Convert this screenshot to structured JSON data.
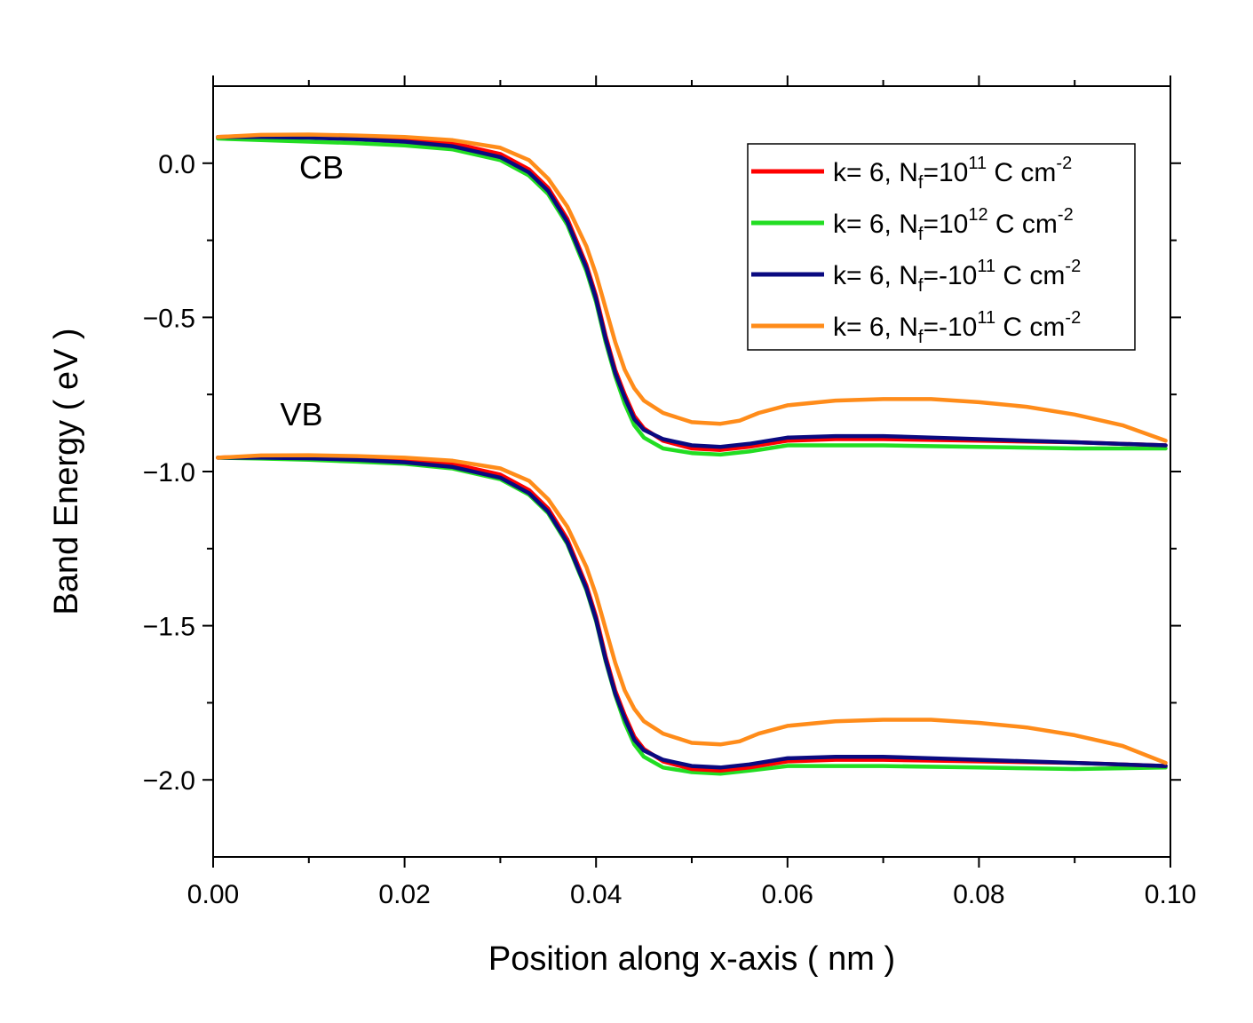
{
  "chart_data": {
    "type": "line",
    "xlabel": "Position along x-axis ( nm )",
    "ylabel": "Band Energy ( eV )",
    "xlim": [
      0.0,
      0.1
    ],
    "ylim": [
      -2.25,
      0.25
    ],
    "x_ticks": [
      "0.00",
      "0.02",
      "0.04",
      "0.06",
      "0.08",
      "0.10"
    ],
    "y_ticks": [
      "0.0",
      "−0.5",
      "−1.0",
      "−1.5",
      "−2.0"
    ],
    "grid": false,
    "legend_position": "top-right",
    "annotations": [
      {
        "text": "CB",
        "x": 0.009,
        "y": -0.05
      },
      {
        "text": "VB",
        "x": 0.007,
        "y": -0.85
      }
    ],
    "series": [
      {
        "legend": {
          "prefix": "k= 6, N",
          "sub": "f",
          "mid": "=10",
          "sup": "11",
          "unit": " C cm",
          "unit_sup": "-2"
        },
        "color": "#ff0000",
        "cb": [
          [
            0.0005,
            0.085
          ],
          [
            0.005,
            0.09
          ],
          [
            0.01,
            0.09
          ],
          [
            0.015,
            0.085
          ],
          [
            0.02,
            0.078
          ],
          [
            0.025,
            0.065
          ],
          [
            0.03,
            0.03
          ],
          [
            0.033,
            -0.02
          ],
          [
            0.035,
            -0.08
          ],
          [
            0.037,
            -0.18
          ],
          [
            0.039,
            -0.33
          ],
          [
            0.04,
            -0.43
          ],
          [
            0.041,
            -0.56
          ],
          [
            0.042,
            -0.67
          ],
          [
            0.043,
            -0.75
          ],
          [
            0.044,
            -0.82
          ],
          [
            0.045,
            -0.86
          ],
          [
            0.047,
            -0.9
          ],
          [
            0.05,
            -0.925
          ],
          [
            0.053,
            -0.93
          ],
          [
            0.056,
            -0.92
          ],
          [
            0.06,
            -0.9
          ],
          [
            0.065,
            -0.895
          ],
          [
            0.07,
            -0.895
          ],
          [
            0.08,
            -0.9
          ],
          [
            0.09,
            -0.905
          ],
          [
            0.0995,
            -0.915
          ]
        ],
        "vb": [
          [
            0.0005,
            -0.955
          ],
          [
            0.005,
            -0.95
          ],
          [
            0.01,
            -0.95
          ],
          [
            0.015,
            -0.955
          ],
          [
            0.02,
            -0.962
          ],
          [
            0.025,
            -0.975
          ],
          [
            0.03,
            -1.01
          ],
          [
            0.033,
            -1.06
          ],
          [
            0.035,
            -1.12
          ],
          [
            0.037,
            -1.22
          ],
          [
            0.039,
            -1.37
          ],
          [
            0.04,
            -1.47
          ],
          [
            0.041,
            -1.6
          ],
          [
            0.042,
            -1.71
          ],
          [
            0.043,
            -1.79
          ],
          [
            0.044,
            -1.86
          ],
          [
            0.045,
            -1.9
          ],
          [
            0.047,
            -1.94
          ],
          [
            0.05,
            -1.965
          ],
          [
            0.053,
            -1.97
          ],
          [
            0.056,
            -1.96
          ],
          [
            0.06,
            -1.94
          ],
          [
            0.065,
            -1.935
          ],
          [
            0.07,
            -1.935
          ],
          [
            0.08,
            -1.94
          ],
          [
            0.09,
            -1.945
          ],
          [
            0.0995,
            -1.955
          ]
        ]
      },
      {
        "legend": {
          "prefix": "k= 6, N",
          "sub": "f",
          "mid": "=10",
          "sup": "12",
          "unit": " C cm",
          "unit_sup": "-2"
        },
        "color": "#22dd22",
        "cb": [
          [
            0.0005,
            0.08
          ],
          [
            0.005,
            0.075
          ],
          [
            0.01,
            0.07
          ],
          [
            0.015,
            0.065
          ],
          [
            0.02,
            0.058
          ],
          [
            0.025,
            0.045
          ],
          [
            0.03,
            0.01
          ],
          [
            0.033,
            -0.04
          ],
          [
            0.035,
            -0.1
          ],
          [
            0.037,
            -0.2
          ],
          [
            0.039,
            -0.35
          ],
          [
            0.04,
            -0.45
          ],
          [
            0.041,
            -0.58
          ],
          [
            0.042,
            -0.69
          ],
          [
            0.043,
            -0.78
          ],
          [
            0.044,
            -0.85
          ],
          [
            0.045,
            -0.89
          ],
          [
            0.047,
            -0.925
          ],
          [
            0.05,
            -0.94
          ],
          [
            0.053,
            -0.945
          ],
          [
            0.056,
            -0.935
          ],
          [
            0.06,
            -0.915
          ],
          [
            0.065,
            -0.915
          ],
          [
            0.07,
            -0.915
          ],
          [
            0.08,
            -0.92
          ],
          [
            0.09,
            -0.925
          ],
          [
            0.0995,
            -0.925
          ]
        ],
        "vb": [
          [
            0.0005,
            -0.955
          ],
          [
            0.005,
            -0.958
          ],
          [
            0.01,
            -0.962
          ],
          [
            0.015,
            -0.968
          ],
          [
            0.02,
            -0.975
          ],
          [
            0.025,
            -0.99
          ],
          [
            0.03,
            -1.025
          ],
          [
            0.033,
            -1.075
          ],
          [
            0.035,
            -1.135
          ],
          [
            0.037,
            -1.235
          ],
          [
            0.039,
            -1.385
          ],
          [
            0.04,
            -1.485
          ],
          [
            0.041,
            -1.615
          ],
          [
            0.042,
            -1.725
          ],
          [
            0.043,
            -1.815
          ],
          [
            0.044,
            -1.885
          ],
          [
            0.045,
            -1.925
          ],
          [
            0.047,
            -1.96
          ],
          [
            0.05,
            -1.975
          ],
          [
            0.053,
            -1.98
          ],
          [
            0.056,
            -1.97
          ],
          [
            0.06,
            -1.955
          ],
          [
            0.065,
            -1.955
          ],
          [
            0.07,
            -1.955
          ],
          [
            0.08,
            -1.96
          ],
          [
            0.09,
            -1.965
          ],
          [
            0.0995,
            -1.96
          ]
        ]
      },
      {
        "legend": {
          "prefix": "k= 6, N",
          "sub": "f",
          "mid": "=-10",
          "sup": "11",
          "unit": " C cm",
          "unit_sup": "-2"
        },
        "color": "#0a0a80",
        "cb": [
          [
            0.0005,
            0.085
          ],
          [
            0.005,
            0.085
          ],
          [
            0.01,
            0.083
          ],
          [
            0.015,
            0.078
          ],
          [
            0.02,
            0.07
          ],
          [
            0.025,
            0.055
          ],
          [
            0.03,
            0.02
          ],
          [
            0.033,
            -0.03
          ],
          [
            0.035,
            -0.09
          ],
          [
            0.037,
            -0.19
          ],
          [
            0.039,
            -0.34
          ],
          [
            0.04,
            -0.44
          ],
          [
            0.041,
            -0.57
          ],
          [
            0.042,
            -0.68
          ],
          [
            0.043,
            -0.76
          ],
          [
            0.044,
            -0.83
          ],
          [
            0.045,
            -0.865
          ],
          [
            0.047,
            -0.895
          ],
          [
            0.05,
            -0.915
          ],
          [
            0.053,
            -0.92
          ],
          [
            0.056,
            -0.91
          ],
          [
            0.06,
            -0.89
          ],
          [
            0.065,
            -0.885
          ],
          [
            0.07,
            -0.885
          ],
          [
            0.08,
            -0.895
          ],
          [
            0.09,
            -0.905
          ],
          [
            0.0995,
            -0.915
          ]
        ],
        "vb": [
          [
            0.0005,
            -0.955
          ],
          [
            0.005,
            -0.955
          ],
          [
            0.01,
            -0.957
          ],
          [
            0.015,
            -0.962
          ],
          [
            0.02,
            -0.97
          ],
          [
            0.025,
            -0.985
          ],
          [
            0.03,
            -1.02
          ],
          [
            0.033,
            -1.07
          ],
          [
            0.035,
            -1.13
          ],
          [
            0.037,
            -1.23
          ],
          [
            0.039,
            -1.38
          ],
          [
            0.04,
            -1.48
          ],
          [
            0.041,
            -1.61
          ],
          [
            0.042,
            -1.72
          ],
          [
            0.043,
            -1.8
          ],
          [
            0.044,
            -1.87
          ],
          [
            0.045,
            -1.905
          ],
          [
            0.047,
            -1.935
          ],
          [
            0.05,
            -1.955
          ],
          [
            0.053,
            -1.96
          ],
          [
            0.056,
            -1.95
          ],
          [
            0.06,
            -1.93
          ],
          [
            0.065,
            -1.925
          ],
          [
            0.07,
            -1.925
          ],
          [
            0.08,
            -1.935
          ],
          [
            0.09,
            -1.945
          ],
          [
            0.0995,
            -1.955
          ]
        ]
      },
      {
        "legend": {
          "prefix": "k= 6, N",
          "sub": "f",
          "mid": "=-10",
          "sup": "11",
          "unit": " C cm",
          "unit_sup": "-2"
        },
        "color": "#ff8c1a",
        "cb": [
          [
            0.0005,
            0.085
          ],
          [
            0.005,
            0.092
          ],
          [
            0.01,
            0.093
          ],
          [
            0.015,
            0.09
          ],
          [
            0.02,
            0.085
          ],
          [
            0.025,
            0.075
          ],
          [
            0.03,
            0.05
          ],
          [
            0.033,
            0.01
          ],
          [
            0.035,
            -0.05
          ],
          [
            0.037,
            -0.14
          ],
          [
            0.039,
            -0.27
          ],
          [
            0.04,
            -0.36
          ],
          [
            0.041,
            -0.47
          ],
          [
            0.042,
            -0.58
          ],
          [
            0.043,
            -0.67
          ],
          [
            0.044,
            -0.73
          ],
          [
            0.045,
            -0.77
          ],
          [
            0.047,
            -0.81
          ],
          [
            0.05,
            -0.84
          ],
          [
            0.053,
            -0.845
          ],
          [
            0.055,
            -0.835
          ],
          [
            0.057,
            -0.81
          ],
          [
            0.06,
            -0.785
          ],
          [
            0.065,
            -0.77
          ],
          [
            0.07,
            -0.765
          ],
          [
            0.075,
            -0.765
          ],
          [
            0.08,
            -0.775
          ],
          [
            0.085,
            -0.79
          ],
          [
            0.09,
            -0.815
          ],
          [
            0.095,
            -0.85
          ],
          [
            0.0995,
            -0.9
          ]
        ],
        "vb": [
          [
            0.0005,
            -0.955
          ],
          [
            0.005,
            -0.948
          ],
          [
            0.01,
            -0.947
          ],
          [
            0.015,
            -0.95
          ],
          [
            0.02,
            -0.955
          ],
          [
            0.025,
            -0.965
          ],
          [
            0.03,
            -0.99
          ],
          [
            0.033,
            -1.03
          ],
          [
            0.035,
            -1.09
          ],
          [
            0.037,
            -1.18
          ],
          [
            0.039,
            -1.31
          ],
          [
            0.04,
            -1.4
          ],
          [
            0.041,
            -1.51
          ],
          [
            0.042,
            -1.62
          ],
          [
            0.043,
            -1.71
          ],
          [
            0.044,
            -1.77
          ],
          [
            0.045,
            -1.81
          ],
          [
            0.047,
            -1.85
          ],
          [
            0.05,
            -1.88
          ],
          [
            0.053,
            -1.885
          ],
          [
            0.055,
            -1.875
          ],
          [
            0.057,
            -1.85
          ],
          [
            0.06,
            -1.825
          ],
          [
            0.065,
            -1.81
          ],
          [
            0.07,
            -1.805
          ],
          [
            0.075,
            -1.805
          ],
          [
            0.08,
            -1.815
          ],
          [
            0.085,
            -1.83
          ],
          [
            0.09,
            -1.855
          ],
          [
            0.095,
            -1.89
          ],
          [
            0.0995,
            -1.945
          ]
        ]
      }
    ]
  }
}
